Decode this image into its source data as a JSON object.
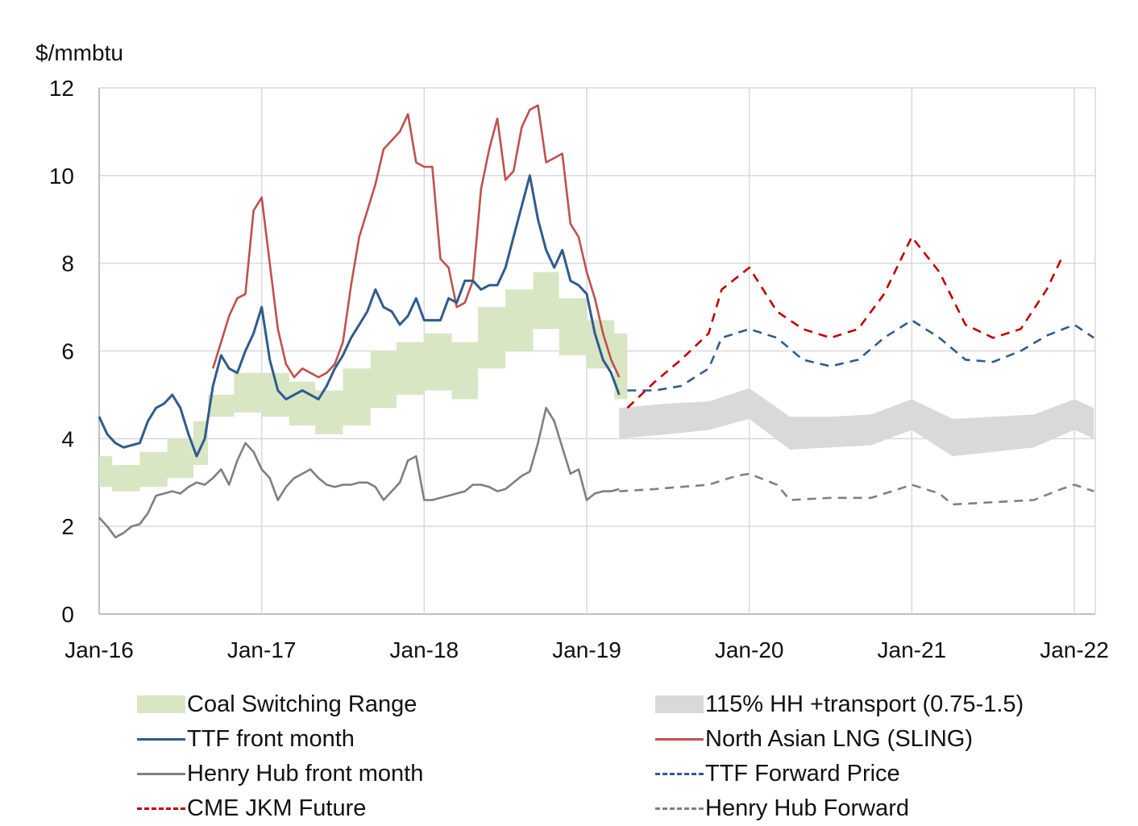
{
  "chart_data": {
    "type": "line",
    "title": "",
    "ylabel": "$/mmbtu",
    "xlabel": "",
    "ylim": [
      0,
      12
    ],
    "yticks": [
      0,
      2,
      4,
      6,
      8,
      10,
      12
    ],
    "xlim": [
      "2016-01",
      "2022-01"
    ],
    "xticks": [
      "Jan-16",
      "Jan-17",
      "Jan-18",
      "Jan-19",
      "Jan-20",
      "Jan-21",
      "Jan-22"
    ],
    "grid": true,
    "legend_position": "bottom",
    "colors": {
      "coal": "#d8e6c4",
      "hh_band": "#d9d9d9",
      "ttf": "#2f5b8f",
      "sling": "#c0504d",
      "henry_hub": "#7f7f7f",
      "ttf_forward": "#2f5b8f",
      "jkm": "#c00000",
      "hh_forward": "#808080"
    },
    "legend": [
      {
        "key": "coal",
        "label": "Coal Switching Range",
        "style": "area"
      },
      {
        "key": "hh_band",
        "label": "115% HH +transport (0.75-1.5)",
        "style": "area"
      },
      {
        "key": "ttf",
        "label": "TTF front month",
        "style": "solid"
      },
      {
        "key": "sling",
        "label": "North Asian LNG (SLING)",
        "style": "solid"
      },
      {
        "key": "henry_hub",
        "label": "Henry Hub front month",
        "style": "solid"
      },
      {
        "key": "ttf_forward",
        "label": "TTF Forward Price",
        "style": "dashed"
      },
      {
        "key": "jkm",
        "label": "CME JKM Future",
        "style": "dashed"
      },
      {
        "key": "hh_forward",
        "label": "Henry Hub Forward",
        "style": "dashed"
      }
    ],
    "series": {
      "coal": {
        "name": "Coal Switching Range",
        "type": "band",
        "x": [
          2016.0,
          2016.08,
          2016.25,
          2016.42,
          2016.58,
          2016.67,
          2016.83,
          2017.0,
          2017.17,
          2017.33,
          2017.5,
          2017.67,
          2017.83,
          2018.0,
          2018.17,
          2018.33,
          2018.5,
          2018.67,
          2018.83,
          2019.0,
          2019.17
        ],
        "low": [
          2.9,
          2.8,
          2.9,
          3.1,
          3.4,
          4.5,
          4.6,
          4.5,
          4.3,
          4.1,
          4.3,
          4.7,
          5.0,
          5.1,
          4.9,
          5.6,
          6.0,
          6.5,
          5.9,
          5.6,
          4.9
        ],
        "high": [
          3.6,
          3.4,
          3.7,
          4.0,
          4.4,
          5.0,
          5.5,
          5.5,
          5.3,
          5.1,
          5.6,
          6.0,
          6.2,
          6.4,
          6.2,
          7.0,
          7.4,
          7.8,
          7.2,
          6.7,
          6.4
        ]
      },
      "hh_band": {
        "name": "115% HH +transport (0.75-1.5)",
        "type": "band",
        "x": [
          2019.2,
          2019.5,
          2019.75,
          2020.0,
          2020.25,
          2020.5,
          2020.75,
          2021.0,
          2021.25,
          2021.5,
          2021.75,
          2022.0,
          2022.12
        ],
        "low": [
          4.0,
          4.1,
          4.2,
          4.45,
          3.75,
          3.8,
          3.85,
          4.2,
          3.6,
          3.7,
          3.8,
          4.2,
          4.0
        ],
        "high": [
          4.7,
          4.8,
          4.85,
          5.15,
          4.5,
          4.5,
          4.55,
          4.9,
          4.45,
          4.5,
          4.55,
          4.9,
          4.7
        ]
      },
      "ttf": {
        "name": "TTF front month",
        "x": [
          2016.0,
          2016.05,
          2016.1,
          2016.15,
          2016.2,
          2016.25,
          2016.3,
          2016.35,
          2016.4,
          2016.45,
          2016.5,
          2016.55,
          2016.6,
          2016.65,
          2016.7,
          2016.75,
          2016.8,
          2016.85,
          2016.9,
          2016.95,
          2017.0,
          2017.05,
          2017.1,
          2017.15,
          2017.2,
          2017.25,
          2017.3,
          2017.35,
          2017.4,
          2017.45,
          2017.5,
          2017.55,
          2017.6,
          2017.65,
          2017.7,
          2017.75,
          2017.8,
          2017.85,
          2017.9,
          2017.95,
          2018.0,
          2018.05,
          2018.1,
          2018.15,
          2018.2,
          2018.25,
          2018.3,
          2018.35,
          2018.4,
          2018.45,
          2018.5,
          2018.55,
          2018.6,
          2018.65,
          2018.7,
          2018.75,
          2018.8,
          2018.85,
          2018.9,
          2018.95,
          2019.0,
          2019.05,
          2019.1,
          2019.15,
          2019.2
        ],
        "values": [
          4.5,
          4.1,
          3.9,
          3.8,
          3.85,
          3.9,
          4.4,
          4.7,
          4.8,
          5.0,
          4.7,
          4.1,
          3.6,
          4.0,
          5.2,
          5.9,
          5.6,
          5.5,
          6.0,
          6.4,
          7.0,
          5.8,
          5.1,
          4.9,
          5.0,
          5.1,
          5.0,
          4.9,
          5.2,
          5.6,
          5.9,
          6.3,
          6.6,
          6.9,
          7.4,
          7.0,
          6.9,
          6.6,
          6.8,
          7.2,
          6.7,
          6.7,
          6.7,
          7.2,
          7.1,
          7.6,
          7.6,
          7.4,
          7.5,
          7.5,
          7.9,
          8.6,
          9.3,
          10.0,
          9.0,
          8.3,
          7.9,
          8.3,
          7.6,
          7.5,
          7.3,
          6.4,
          5.8,
          5.5,
          5.0
        ]
      },
      "sling": {
        "name": "North Asian LNG (SLING)",
        "x": [
          2016.7,
          2016.75,
          2016.8,
          2016.85,
          2016.9,
          2016.95,
          2017.0,
          2017.05,
          2017.1,
          2017.15,
          2017.2,
          2017.25,
          2017.3,
          2017.35,
          2017.4,
          2017.45,
          2017.5,
          2017.55,
          2017.6,
          2017.65,
          2017.7,
          2017.75,
          2017.8,
          2017.85,
          2017.9,
          2017.95,
          2018.0,
          2018.05,
          2018.1,
          2018.15,
          2018.2,
          2018.25,
          2018.3,
          2018.35,
          2018.4,
          2018.45,
          2018.5,
          2018.55,
          2018.6,
          2018.65,
          2018.7,
          2018.75,
          2018.8,
          2018.85,
          2018.9,
          2018.95,
          2019.0,
          2019.05,
          2019.1,
          2019.15,
          2019.2
        ],
        "values": [
          5.6,
          6.2,
          6.8,
          7.2,
          7.3,
          9.2,
          9.5,
          8.0,
          6.5,
          5.7,
          5.4,
          5.6,
          5.5,
          5.4,
          5.5,
          5.7,
          6.2,
          7.5,
          8.6,
          9.2,
          9.8,
          10.6,
          10.8,
          11.0,
          11.4,
          10.3,
          10.2,
          10.2,
          8.1,
          7.9,
          7.0,
          7.1,
          7.6,
          9.7,
          10.6,
          11.3,
          9.9,
          10.1,
          11.1,
          11.5,
          11.6,
          10.3,
          10.4,
          10.5,
          8.9,
          8.6,
          7.8,
          7.2,
          6.4,
          5.8,
          5.4
        ]
      },
      "henry_hub": {
        "name": "Henry Hub front month",
        "x": [
          2016.0,
          2016.05,
          2016.1,
          2016.15,
          2016.2,
          2016.25,
          2016.3,
          2016.35,
          2016.4,
          2016.45,
          2016.5,
          2016.55,
          2016.6,
          2016.65,
          2016.7,
          2016.75,
          2016.8,
          2016.85,
          2016.9,
          2016.95,
          2017.0,
          2017.05,
          2017.1,
          2017.15,
          2017.2,
          2017.25,
          2017.3,
          2017.35,
          2017.4,
          2017.45,
          2017.5,
          2017.55,
          2017.6,
          2017.65,
          2017.7,
          2017.75,
          2017.8,
          2017.85,
          2017.9,
          2017.95,
          2018.0,
          2018.05,
          2018.1,
          2018.15,
          2018.2,
          2018.25,
          2018.3,
          2018.35,
          2018.4,
          2018.45,
          2018.5,
          2018.55,
          2018.6,
          2018.65,
          2018.7,
          2018.75,
          2018.8,
          2018.85,
          2018.9,
          2018.95,
          2019.0,
          2019.05,
          2019.1,
          2019.15,
          2019.2
        ],
        "values": [
          2.2,
          2.0,
          1.75,
          1.85,
          2.0,
          2.05,
          2.3,
          2.7,
          2.75,
          2.8,
          2.75,
          2.9,
          3.0,
          2.95,
          3.1,
          3.3,
          2.95,
          3.5,
          3.9,
          3.7,
          3.3,
          3.1,
          2.6,
          2.9,
          3.1,
          3.2,
          3.3,
          3.1,
          2.95,
          2.9,
          2.95,
          2.95,
          3.0,
          3.0,
          2.9,
          2.6,
          2.8,
          3.0,
          3.5,
          3.6,
          2.6,
          2.6,
          2.65,
          2.7,
          2.75,
          2.8,
          2.95,
          2.95,
          2.9,
          2.8,
          2.85,
          3.0,
          3.15,
          3.25,
          3.9,
          4.7,
          4.4,
          3.8,
          3.2,
          3.3,
          2.6,
          2.75,
          2.8,
          2.8,
          2.85
        ]
      },
      "ttf_forward": {
        "name": "TTF Forward Price",
        "dashed": true,
        "x": [
          2019.25,
          2019.42,
          2019.58,
          2019.75,
          2019.83,
          2020.0,
          2020.17,
          2020.33,
          2020.5,
          2020.67,
          2020.83,
          2021.0,
          2021.17,
          2021.33,
          2021.5,
          2021.67,
          2021.83,
          2022.0,
          2022.12
        ],
        "values": [
          5.1,
          5.1,
          5.2,
          5.6,
          6.3,
          6.5,
          6.3,
          5.8,
          5.65,
          5.8,
          6.3,
          6.7,
          6.3,
          5.8,
          5.75,
          6.0,
          6.35,
          6.6,
          6.3
        ]
      },
      "jkm": {
        "name": "CME JKM Future",
        "dashed": true,
        "x": [
          2019.25,
          2019.42,
          2019.58,
          2019.75,
          2019.83,
          2020.0,
          2020.17,
          2020.33,
          2020.5,
          2020.67,
          2020.83,
          2021.0,
          2021.17,
          2021.33,
          2021.5,
          2021.67,
          2021.83,
          2021.92
        ],
        "values": [
          4.7,
          5.3,
          5.8,
          6.4,
          7.4,
          7.9,
          6.9,
          6.5,
          6.3,
          6.5,
          7.3,
          8.6,
          7.8,
          6.6,
          6.3,
          6.5,
          7.4,
          8.1
        ]
      },
      "hh_forward": {
        "name": "Henry Hub Forward",
        "dashed": true,
        "x": [
          2019.2,
          2019.42,
          2019.58,
          2019.75,
          2019.92,
          2020.0,
          2020.17,
          2020.25,
          2020.5,
          2020.75,
          2020.92,
          2021.0,
          2021.17,
          2021.25,
          2021.5,
          2021.75,
          2021.92,
          2022.0,
          2022.12
        ],
        "values": [
          2.8,
          2.85,
          2.9,
          2.95,
          3.15,
          3.2,
          2.95,
          2.6,
          2.65,
          2.65,
          2.85,
          2.95,
          2.75,
          2.5,
          2.55,
          2.6,
          2.85,
          2.95,
          2.8
        ]
      }
    }
  }
}
